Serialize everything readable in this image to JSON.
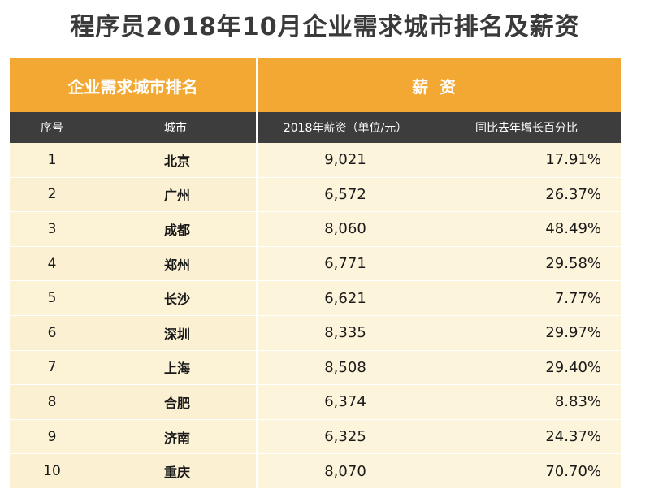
{
  "title": "程序员2018年10月企业需求城市排名及薪资",
  "group_headers": {
    "left": "企业需求城市排名",
    "right": "薪资"
  },
  "columns": {
    "rank": "序号",
    "city": "城市",
    "salary": "2018年薪资（单位/元）",
    "growth": "同比去年增长百分比"
  },
  "rows": [
    {
      "rank": "1",
      "city": "北京",
      "salary": "9,021",
      "growth": "17.91%"
    },
    {
      "rank": "2",
      "city": "广州",
      "salary": "6,572",
      "growth": "26.37%"
    },
    {
      "rank": "3",
      "city": "成都",
      "salary": "8,060",
      "growth": "48.49%"
    },
    {
      "rank": "4",
      "city": "郑州",
      "salary": "6,771",
      "growth": "29.58%"
    },
    {
      "rank": "5",
      "city": "长沙",
      "salary": "6,621",
      "growth": "7.77%"
    },
    {
      "rank": "6",
      "city": "深圳",
      "salary": "8,335",
      "growth": "29.97%"
    },
    {
      "rank": "7",
      "city": "上海",
      "salary": "8,508",
      "growth": "29.40%"
    },
    {
      "rank": "8",
      "city": "合肥",
      "salary": "6,374",
      "growth": "8.83%"
    },
    {
      "rank": "9",
      "city": "济南",
      "salary": "6,325",
      "growth": "24.37%"
    },
    {
      "rank": "10",
      "city": "重庆",
      "salary": "8,070",
      "growth": "70.70%"
    }
  ],
  "colors": {
    "header_orange": "#f2a833",
    "column_header_dark": "#3d3d3d",
    "row_background": "#fbf0d2"
  }
}
